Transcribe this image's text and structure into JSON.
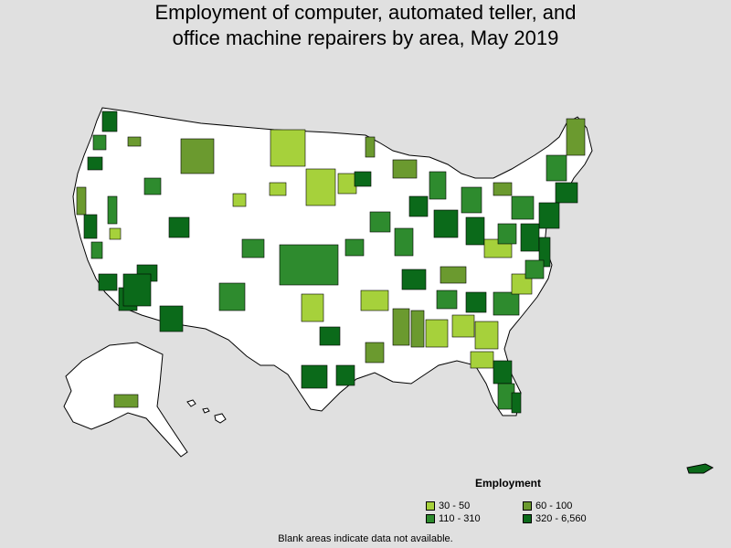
{
  "title": {
    "line1": "Employment of computer, automated teller, and",
    "line2": "office machine repairers by area, May 2019"
  },
  "legend": {
    "title": "Employment",
    "items": [
      {
        "label": "30 - 50",
        "color": "#a6d13b"
      },
      {
        "label": "60 - 100",
        "color": "#6b9a2f"
      },
      {
        "label": "110 - 310",
        "color": "#2e8b2e"
      },
      {
        "label": "320 - 6,560",
        "color": "#0b6a1a"
      }
    ]
  },
  "note": "Blank areas indicate data not available.",
  "colors": {
    "background": "#e0e0e0",
    "land": "#ffffff",
    "border": "#000000"
  }
}
